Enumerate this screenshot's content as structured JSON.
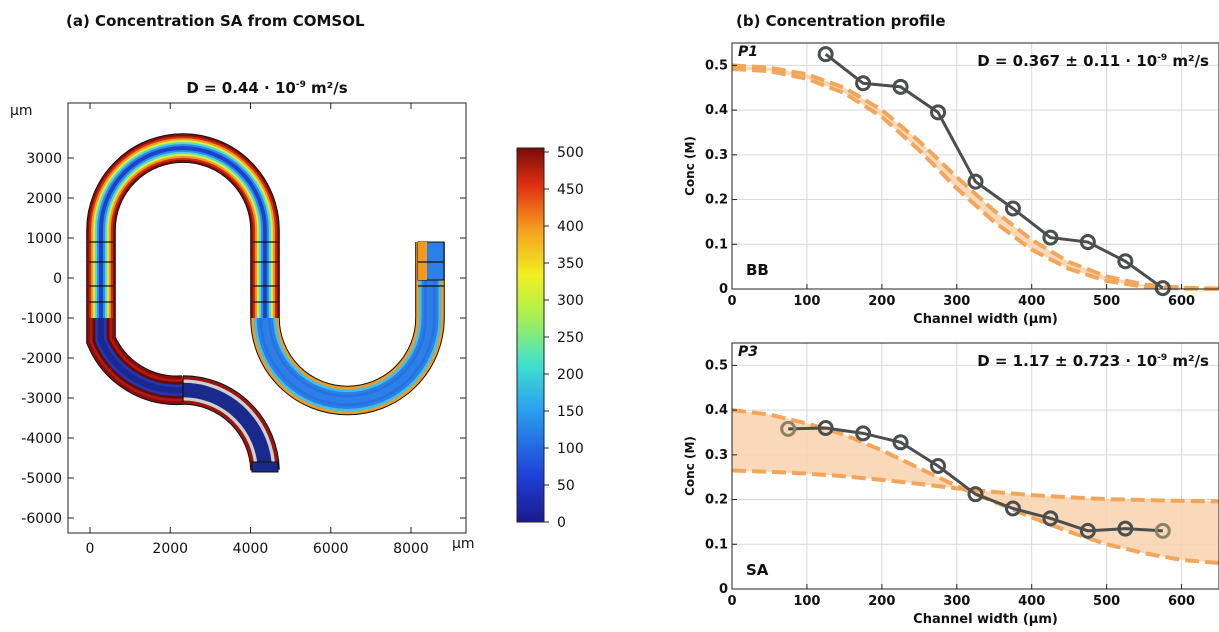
{
  "panel_a": {
    "heading": "(a) Concentration SA from COMSOL",
    "plot_title_main": "D = 0.44 · 10",
    "plot_title_exp": "-9",
    "plot_title_unit": " m²/s",
    "y_unit": "μm",
    "x_unit": "μm",
    "x_ticks": [
      0,
      2000,
      4000,
      6000,
      8000
    ],
    "y_ticks": [
      3000,
      2000,
      1000,
      0,
      -1000,
      -2000,
      -3000,
      -4000,
      -5000,
      -6000
    ],
    "colorbar_ticks": [
      500,
      450,
      400,
      350,
      300,
      250,
      200,
      150,
      100,
      50,
      0
    ]
  },
  "panel_b": {
    "heading": "(b) Concentration profile"
  },
  "chart_data": [
    {
      "type": "line",
      "panel": "P1",
      "species_label": "BB",
      "annotation_main": "D = 0.367 ± 0.11   · 10",
      "annotation_exp": "-9",
      "annotation_unit": " m²/s",
      "xlabel": "Channel width (μm)",
      "ylabel": "Conc (M)",
      "xlim": [
        0,
        650
      ],
      "ylim": [
        0,
        0.55
      ],
      "x_ticks": [
        0,
        100,
        200,
        300,
        400,
        500,
        600
      ],
      "y_ticks": [
        0,
        0.1,
        0.2,
        0.3,
        0.4,
        0.5
      ],
      "grid": true,
      "measured": {
        "x": [
          125,
          175,
          225,
          275,
          325,
          375,
          425,
          475,
          525,
          575
        ],
        "y": [
          0.525,
          0.46,
          0.452,
          0.395,
          0.24,
          0.18,
          0.115,
          0.105,
          0.062,
          0.002
        ]
      },
      "model_upper": {
        "x": [
          0,
          50,
          100,
          150,
          200,
          250,
          300,
          350,
          400,
          450,
          500,
          550,
          600,
          650
        ],
        "y": [
          0.5,
          0.495,
          0.48,
          0.45,
          0.4,
          0.33,
          0.25,
          0.175,
          0.11,
          0.06,
          0.028,
          0.01,
          0.003,
          0.001
        ]
      },
      "model_lower": {
        "x": [
          0,
          50,
          100,
          150,
          200,
          250,
          300,
          350,
          400,
          450,
          500,
          550,
          600,
          650
        ],
        "y": [
          0.492,
          0.487,
          0.47,
          0.438,
          0.385,
          0.31,
          0.225,
          0.15,
          0.088,
          0.045,
          0.018,
          0.005,
          0.001,
          0.0
        ]
      },
      "colors": {
        "measured": "#4a4f4e",
        "model": "#f2a65c",
        "band": "#f8d2ad"
      }
    },
    {
      "type": "line",
      "panel": "P3",
      "species_label": "SA",
      "annotation_main": "D = 1.17 ± 0.723   · 10",
      "annotation_exp": "-9",
      "annotation_unit": " m²/s",
      "xlabel": "Channel width (μm)",
      "ylabel": "Conc (M)",
      "xlim": [
        0,
        650
      ],
      "ylim": [
        0,
        0.55
      ],
      "x_ticks": [
        0,
        100,
        200,
        300,
        400,
        500,
        600
      ],
      "y_ticks": [
        0,
        0.1,
        0.2,
        0.3,
        0.4,
        0.5
      ],
      "grid": true,
      "measured": {
        "x": [
          75,
          125,
          175,
          225,
          275,
          325,
          375,
          425,
          475,
          525,
          575
        ],
        "y": [
          0.358,
          0.36,
          0.348,
          0.328,
          0.275,
          0.212,
          0.18,
          0.158,
          0.13,
          0.135,
          0.13
        ]
      },
      "measured_faded_index": [
        0,
        10
      ],
      "model_upper": {
        "x": [
          0,
          50,
          100,
          150,
          200,
          250,
          300,
          350,
          400,
          450,
          500,
          550,
          600,
          650
        ],
        "y": [
          0.4,
          0.39,
          0.37,
          0.345,
          0.31,
          0.27,
          0.23,
          0.195,
          0.16,
          0.128,
          0.1,
          0.08,
          0.065,
          0.058
        ]
      },
      "model_lower": {
        "x": [
          0,
          50,
          100,
          150,
          200,
          250,
          300,
          350,
          400,
          450,
          500,
          550,
          600,
          650
        ],
        "y": [
          0.265,
          0.262,
          0.258,
          0.252,
          0.244,
          0.235,
          0.225,
          0.217,
          0.21,
          0.205,
          0.201,
          0.199,
          0.197,
          0.196
        ]
      },
      "colors": {
        "measured": "#4a4f4e",
        "faded": "#8d8266",
        "model": "#f2a65c",
        "band": "#f8d2ad"
      }
    }
  ]
}
